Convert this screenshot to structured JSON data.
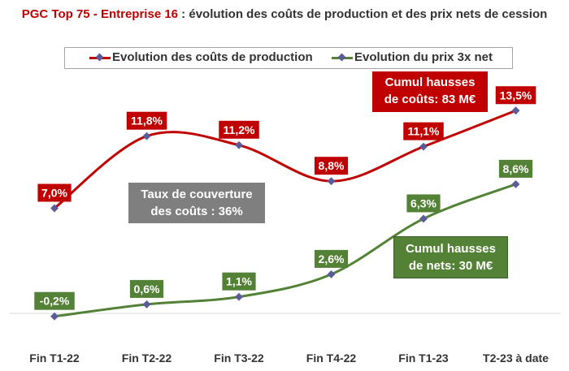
{
  "title": {
    "red_part": "PGC Top 75 - Entreprise 16",
    "rest_part": " : évolution des coûts de production et des prix nets de cession"
  },
  "colors": {
    "red": "#c00000",
    "green": "#538135",
    "grey": "#7f7f7f",
    "marker": "#5b5b9b"
  },
  "annotations": {
    "cumul_couts_line1": "Cumul hausses",
    "cumul_couts_line2": "de coûts: 83 M€",
    "taux_line1": "Taux de couverture",
    "taux_line2": "des coûts : 36%",
    "cumul_nets_line1": "Cumul hausses",
    "cumul_nets_line2": "de nets: 30 M€"
  },
  "chart_data": {
    "type": "line",
    "categories": [
      "Fin T1-22",
      "Fin T2-22",
      "Fin T3-22",
      "Fin T4-22",
      "Fin T1-23",
      "T2-23 à date"
    ],
    "series": [
      {
        "name": "Evolution des coûts de production",
        "values": [
          7.0,
          11.8,
          11.2,
          8.8,
          11.1,
          13.5
        ],
        "labels": [
          "7,0%",
          "11,8%",
          "11,2%",
          "8,8%",
          "11,1%",
          "13,5%"
        ]
      },
      {
        "name": "Evolution du prix 3x net",
        "values": [
          -0.2,
          0.6,
          1.1,
          2.6,
          6.3,
          8.6
        ],
        "labels": [
          "-0,2%",
          "0,6%",
          "1,1%",
          "2,6%",
          "6,3%",
          "8,6%"
        ]
      }
    ],
    "legend": "top",
    "grid": false,
    "smooth": true
  }
}
